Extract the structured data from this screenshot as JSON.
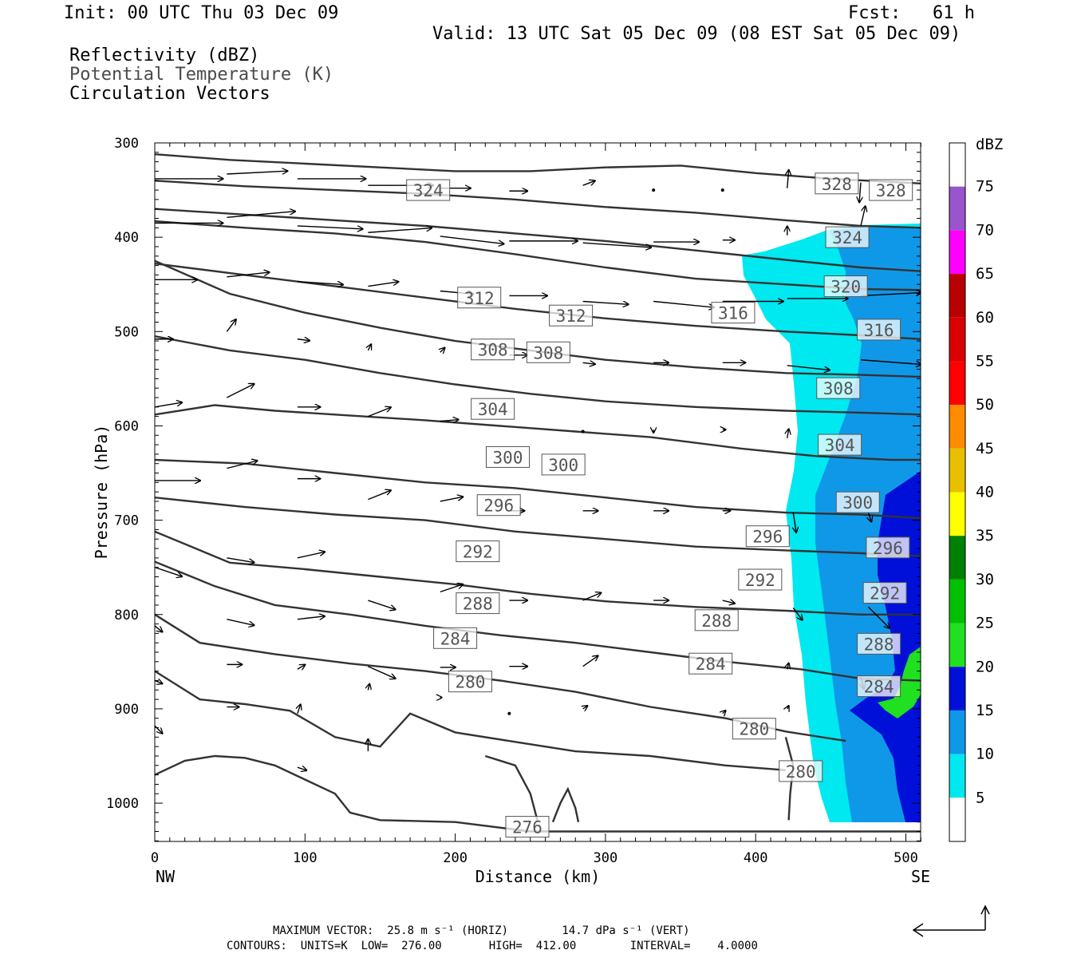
{
  "header": {
    "init": "Init: 00 UTC Thu 03 Dec 09",
    "fcst": "Fcst:   61 h",
    "valid": "Valid: 13 UTC Sat 05 Dec 09 (08 EST Sat 05 Dec 09)",
    "legend_items": [
      "Reflectivity (dBZ)",
      "Potential Temperature (K)",
      "Circulation Vectors"
    ]
  },
  "colors": {
    "cyan": "#00e8f0",
    "blue_light": "#1098e8",
    "blue_dark": "#0010d8",
    "green_light": "#20e020",
    "contour": "#333333"
  },
  "chart_data": {
    "type": "cross-section",
    "xlabel": "Distance (km)",
    "ylabel": "Pressure (hPa)",
    "xlim": [
      0,
      510
    ],
    "ylim": [
      300,
      1040
    ],
    "x_ticks": [
      0,
      100,
      200,
      300,
      400,
      500
    ],
    "y_ticks": [
      300,
      400,
      500,
      600,
      700,
      800,
      900,
      1000
    ],
    "x_endpoints": [
      "NW",
      "SE"
    ],
    "colorbar": {
      "title": "dBZ",
      "levels": [
        5,
        10,
        15,
        20,
        25,
        30,
        35,
        40,
        45,
        50,
        55,
        60,
        65,
        70,
        75
      ],
      "colors": [
        "#ffffff",
        "#00e8f0",
        "#1098e8",
        "#0010d8",
        "#20e020",
        "#00c000",
        "#008000",
        "#ffff00",
        "#e8c000",
        "#ff8c00",
        "#ff0000",
        "#d80000",
        "#b80000",
        "#ff00ff",
        "#9955cc"
      ]
    },
    "contour_labels": [
      {
        "value": "324",
        "x": 182,
        "p": 350
      },
      {
        "value": "328",
        "x": 454,
        "p": 343
      },
      {
        "value": "328",
        "x": 490,
        "p": 350
      },
      {
        "value": "324",
        "x": 461,
        "p": 400
      },
      {
        "value": "320",
        "x": 460,
        "p": 452
      },
      {
        "value": "316",
        "x": 482,
        "p": 498
      },
      {
        "value": "312",
        "x": 216,
        "p": 464
      },
      {
        "value": "312",
        "x": 277,
        "p": 483
      },
      {
        "value": "316",
        "x": 385,
        "p": 480
      },
      {
        "value": "308",
        "x": 225,
        "p": 519
      },
      {
        "value": "308",
        "x": 262,
        "p": 522
      },
      {
        "value": "308",
        "x": 455,
        "p": 560
      },
      {
        "value": "304",
        "x": 225,
        "p": 582
      },
      {
        "value": "304",
        "x": 456,
        "p": 620
      },
      {
        "value": "300",
        "x": 235,
        "p": 633
      },
      {
        "value": "300",
        "x": 272,
        "p": 641
      },
      {
        "value": "300",
        "x": 468,
        "p": 681
      },
      {
        "value": "296",
        "x": 229,
        "p": 684
      },
      {
        "value": "296",
        "x": 408,
        "p": 717
      },
      {
        "value": "296",
        "x": 488,
        "p": 729
      },
      {
        "value": "292",
        "x": 215,
        "p": 733
      },
      {
        "value": "292",
        "x": 403,
        "p": 763
      },
      {
        "value": "292",
        "x": 486,
        "p": 777
      },
      {
        "value": "288",
        "x": 215,
        "p": 788
      },
      {
        "value": "288",
        "x": 374,
        "p": 806
      },
      {
        "value": "288",
        "x": 482,
        "p": 831
      },
      {
        "value": "284",
        "x": 200,
        "p": 825
      },
      {
        "value": "284",
        "x": 370,
        "p": 852
      },
      {
        "value": "284",
        "x": 482,
        "p": 876
      },
      {
        "value": "280",
        "x": 210,
        "p": 871
      },
      {
        "value": "280",
        "x": 399,
        "p": 921
      },
      {
        "value": "280",
        "x": 430,
        "p": 966
      },
      {
        "value": "276",
        "x": 248,
        "p": 1025
      }
    ],
    "vectors": [
      {
        "x": 0,
        "p": 338,
        "u": 45,
        "w": 0
      },
      {
        "x": 48,
        "p": 333,
        "u": 40,
        "w": 2
      },
      {
        "x": 95,
        "p": 338,
        "u": 45,
        "w": 0
      },
      {
        "x": 142,
        "p": 345,
        "u": 43,
        "w": 0
      },
      {
        "x": 190,
        "p": 348,
        "u": 20,
        "w": 0
      },
      {
        "x": 236,
        "p": 351,
        "u": 12,
        "w": 0
      },
      {
        "x": 285,
        "p": 345,
        "u": 8,
        "w": 3
      },
      {
        "x": 332,
        "p": 350,
        "u": 0,
        "w": 0
      },
      {
        "x": 378,
        "p": 350,
        "u": 0,
        "w": 0
      },
      {
        "x": 421,
        "p": 348,
        "u": 1,
        "w": 12
      },
      {
        "x": 470,
        "p": 342,
        "u": -1,
        "w": -13
      },
      {
        "x": 0,
        "p": 385,
        "u": 45,
        "w": 0
      },
      {
        "x": 48,
        "p": 379,
        "u": 45,
        "w": 4
      },
      {
        "x": 95,
        "p": 388,
        "u": 43,
        "w": -2
      },
      {
        "x": 142,
        "p": 395,
        "u": 42,
        "w": 3
      },
      {
        "x": 190,
        "p": 399,
        "u": 42,
        "w": -5
      },
      {
        "x": 236,
        "p": 404,
        "u": 45,
        "w": 0
      },
      {
        "x": 285,
        "p": 406,
        "u": 45,
        "w": -3
      },
      {
        "x": 332,
        "p": 405,
        "u": 30,
        "w": 0
      },
      {
        "x": 378,
        "p": 403,
        "u": 8,
        "w": 0
      },
      {
        "x": 421,
        "p": 398,
        "u": 0,
        "w": 6
      },
      {
        "x": 470,
        "p": 388,
        "u": 3,
        "w": 13
      },
      {
        "x": 0,
        "p": 445,
        "u": 28,
        "w": 0
      },
      {
        "x": 48,
        "p": 442,
        "u": 28,
        "w": 3
      },
      {
        "x": 95,
        "p": 447,
        "u": 30,
        "w": -2
      },
      {
        "x": 142,
        "p": 452,
        "u": 20,
        "w": 3
      },
      {
        "x": 190,
        "p": 457,
        "u": 22,
        "w": -2
      },
      {
        "x": 236,
        "p": 462,
        "u": 25,
        "w": 0
      },
      {
        "x": 285,
        "p": 468,
        "u": 30,
        "w": -2
      },
      {
        "x": 332,
        "p": 468,
        "u": 40,
        "w": -4
      },
      {
        "x": 378,
        "p": 468,
        "u": 40,
        "w": 0
      },
      {
        "x": 421,
        "p": 465,
        "u": 40,
        "w": 0
      },
      {
        "x": 470,
        "p": 462,
        "u": 40,
        "w": 2
      },
      {
        "x": 0,
        "p": 508,
        "u": 12,
        "w": 0
      },
      {
        "x": 48,
        "p": 500,
        "u": 6,
        "w": 8
      },
      {
        "x": 95,
        "p": 508,
        "u": 8,
        "w": -1
      },
      {
        "x": 142,
        "p": 520,
        "u": 2,
        "w": 4
      },
      {
        "x": 190,
        "p": 522,
        "u": 3,
        "w": 3
      },
      {
        "x": 236,
        "p": 525,
        "u": 12,
        "w": 0
      },
      {
        "x": 285,
        "p": 533,
        "u": 8,
        "w": -1
      },
      {
        "x": 332,
        "p": 533,
        "u": 10,
        "w": 0
      },
      {
        "x": 378,
        "p": 533,
        "u": 15,
        "w": 0
      },
      {
        "x": 421,
        "p": 536,
        "u": 28,
        "w": -3
      },
      {
        "x": 470,
        "p": 530,
        "u": 40,
        "w": -3
      },
      {
        "x": 0,
        "p": 580,
        "u": 18,
        "w": 3
      },
      {
        "x": 48,
        "p": 570,
        "u": 18,
        "w": 9
      },
      {
        "x": 95,
        "p": 580,
        "u": 15,
        "w": 0
      },
      {
        "x": 142,
        "p": 590,
        "u": 15,
        "w": 6
      },
      {
        "x": 190,
        "p": 595,
        "u": 12,
        "w": 1
      },
      {
        "x": 285,
        "p": 606,
        "u": 0,
        "w": 0
      },
      {
        "x": 332,
        "p": 604,
        "u": 0,
        "w": -2
      },
      {
        "x": 378,
        "p": 604,
        "u": 2,
        "w": 0
      },
      {
        "x": 421,
        "p": 613,
        "u": 1,
        "w": 6
      },
      {
        "x": 0,
        "p": 658,
        "u": 30,
        "w": 0
      },
      {
        "x": 48,
        "p": 645,
        "u": 20,
        "w": 5
      },
      {
        "x": 95,
        "p": 656,
        "u": 15,
        "w": 0
      },
      {
        "x": 142,
        "p": 678,
        "u": 15,
        "w": 6
      },
      {
        "x": 190,
        "p": 680,
        "u": 15,
        "w": 3
      },
      {
        "x": 236,
        "p": 690,
        "u": 10,
        "w": 0
      },
      {
        "x": 285,
        "p": 690,
        "u": 10,
        "w": 0
      },
      {
        "x": 332,
        "p": 690,
        "u": 10,
        "w": 0
      },
      {
        "x": 378,
        "p": 690,
        "u": 5,
        "w": 0
      },
      {
        "x": 425,
        "p": 692,
        "u": 2,
        "w": -13
      },
      {
        "x": 475,
        "p": 692,
        "u": 2,
        "w": -6
      },
      {
        "x": 0,
        "p": 750,
        "u": 18,
        "w": -6
      },
      {
        "x": 48,
        "p": 740,
        "u": 18,
        "w": -3
      },
      {
        "x": 95,
        "p": 740,
        "u": 18,
        "w": 4
      },
      {
        "x": 142,
        "p": 785,
        "u": 18,
        "w": -6
      },
      {
        "x": 190,
        "p": 776,
        "u": 15,
        "w": 5
      },
      {
        "x": 236,
        "p": 785,
        "u": 12,
        "w": 0
      },
      {
        "x": 285,
        "p": 785,
        "u": 12,
        "w": 5
      },
      {
        "x": 332,
        "p": 785,
        "u": 10,
        "w": 0
      },
      {
        "x": 378,
        "p": 785,
        "u": 8,
        "w": -2
      },
      {
        "x": 425,
        "p": 793,
        "u": 6,
        "w": -8
      },
      {
        "x": 475,
        "p": 792,
        "u": 14,
        "w": -14
      },
      {
        "x": 0,
        "p": 812,
        "u": 5,
        "w": -4
      },
      {
        "x": 48,
        "p": 805,
        "u": 18,
        "w": -4
      },
      {
        "x": 95,
        "p": 805,
        "u": 18,
        "w": 2
      },
      {
        "x": 142,
        "p": 855,
        "u": 18,
        "w": -8
      },
      {
        "x": 48,
        "p": 853,
        "u": 10,
        "w": 0
      },
      {
        "x": 95,
        "p": 858,
        "u": 5,
        "w": 3
      },
      {
        "x": 190,
        "p": 856,
        "u": 10,
        "w": 0
      },
      {
        "x": 236,
        "p": 855,
        "u": 12,
        "w": 0
      },
      {
        "x": 285,
        "p": 855,
        "u": 10,
        "w": 7
      },
      {
        "x": 421,
        "p": 858,
        "u": 1,
        "w": 4
      },
      {
        "x": 470,
        "p": 866,
        "u": 2,
        "w": -8
      },
      {
        "x": 0,
        "p": 870,
        "u": 5,
        "w": -2
      },
      {
        "x": 48,
        "p": 898,
        "u": 8,
        "w": 0
      },
      {
        "x": 95,
        "p": 905,
        "u": 2,
        "w": 6
      },
      {
        "x": 142,
        "p": 880,
        "u": 1,
        "w": 4
      },
      {
        "x": 190,
        "p": 888,
        "u": 1,
        "w": 0
      },
      {
        "x": 236,
        "p": 905,
        "u": 0,
        "w": 0
      },
      {
        "x": 285,
        "p": 900,
        "u": 3,
        "w": 2
      },
      {
        "x": 378,
        "p": 905,
        "u": 2,
        "w": 2
      },
      {
        "x": 421,
        "p": 900,
        "u": 1,
        "w": 2
      },
      {
        "x": 0,
        "p": 918,
        "u": 5,
        "w": -5
      },
      {
        "x": 142,
        "p": 945,
        "u": 0,
        "w": 8
      },
      {
        "x": 95,
        "p": 962,
        "u": 6,
        "w": -2
      }
    ]
  },
  "footer": {
    "line1": "MAXIMUM VECTOR:  25.8 m s⁻¹ (HORIZ)        14.7 dPa s⁻¹ (VERT)",
    "line2": "CONTOURS:  UNITS=K  LOW=  276.00       HIGH=  412.00        INTERVAL=    4.0000"
  }
}
